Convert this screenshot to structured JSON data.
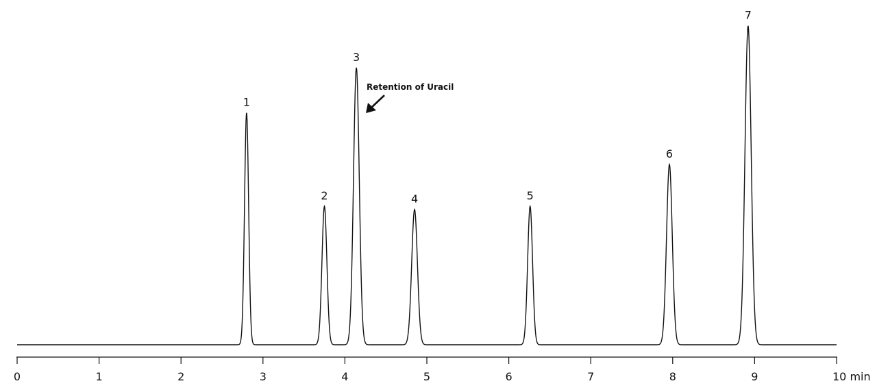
{
  "chart_data": {
    "type": "line",
    "x_unit": "min",
    "xlim": [
      0,
      10
    ],
    "x_ticks": [
      {
        "value": 0,
        "label": "0"
      },
      {
        "value": 1,
        "label": "1"
      },
      {
        "value": 2,
        "label": "2"
      },
      {
        "value": 3,
        "label": "3"
      },
      {
        "value": 4,
        "label": "4"
      },
      {
        "value": 5,
        "label": "5"
      },
      {
        "value": 6,
        "label": "6"
      },
      {
        "value": 7,
        "label": "7"
      },
      {
        "value": 8,
        "label": "8"
      },
      {
        "value": 9,
        "label": "9"
      },
      {
        "value": 10,
        "label": "10 min"
      }
    ],
    "peaks": [
      {
        "label": "1",
        "rt": 2.8,
        "height": 0.72,
        "width": 0.025
      },
      {
        "label": "2",
        "rt": 3.75,
        "height": 0.43,
        "width": 0.03
      },
      {
        "label": "3",
        "rt": 4.14,
        "height": 0.86,
        "width": 0.035
      },
      {
        "label": "4",
        "rt": 4.85,
        "height": 0.42,
        "width": 0.035
      },
      {
        "label": "5",
        "rt": 6.26,
        "height": 0.43,
        "width": 0.03
      },
      {
        "label": "6",
        "rt": 7.96,
        "height": 0.56,
        "width": 0.035
      },
      {
        "label": "7",
        "rt": 8.92,
        "height": 0.99,
        "width": 0.038
      }
    ],
    "annotation": {
      "text": "Retention of Uracil",
      "peak": "3"
    },
    "grid": false,
    "legend": "none"
  },
  "colors": {
    "trace": "#111111",
    "axis": "#111111",
    "text": "#111111"
  }
}
